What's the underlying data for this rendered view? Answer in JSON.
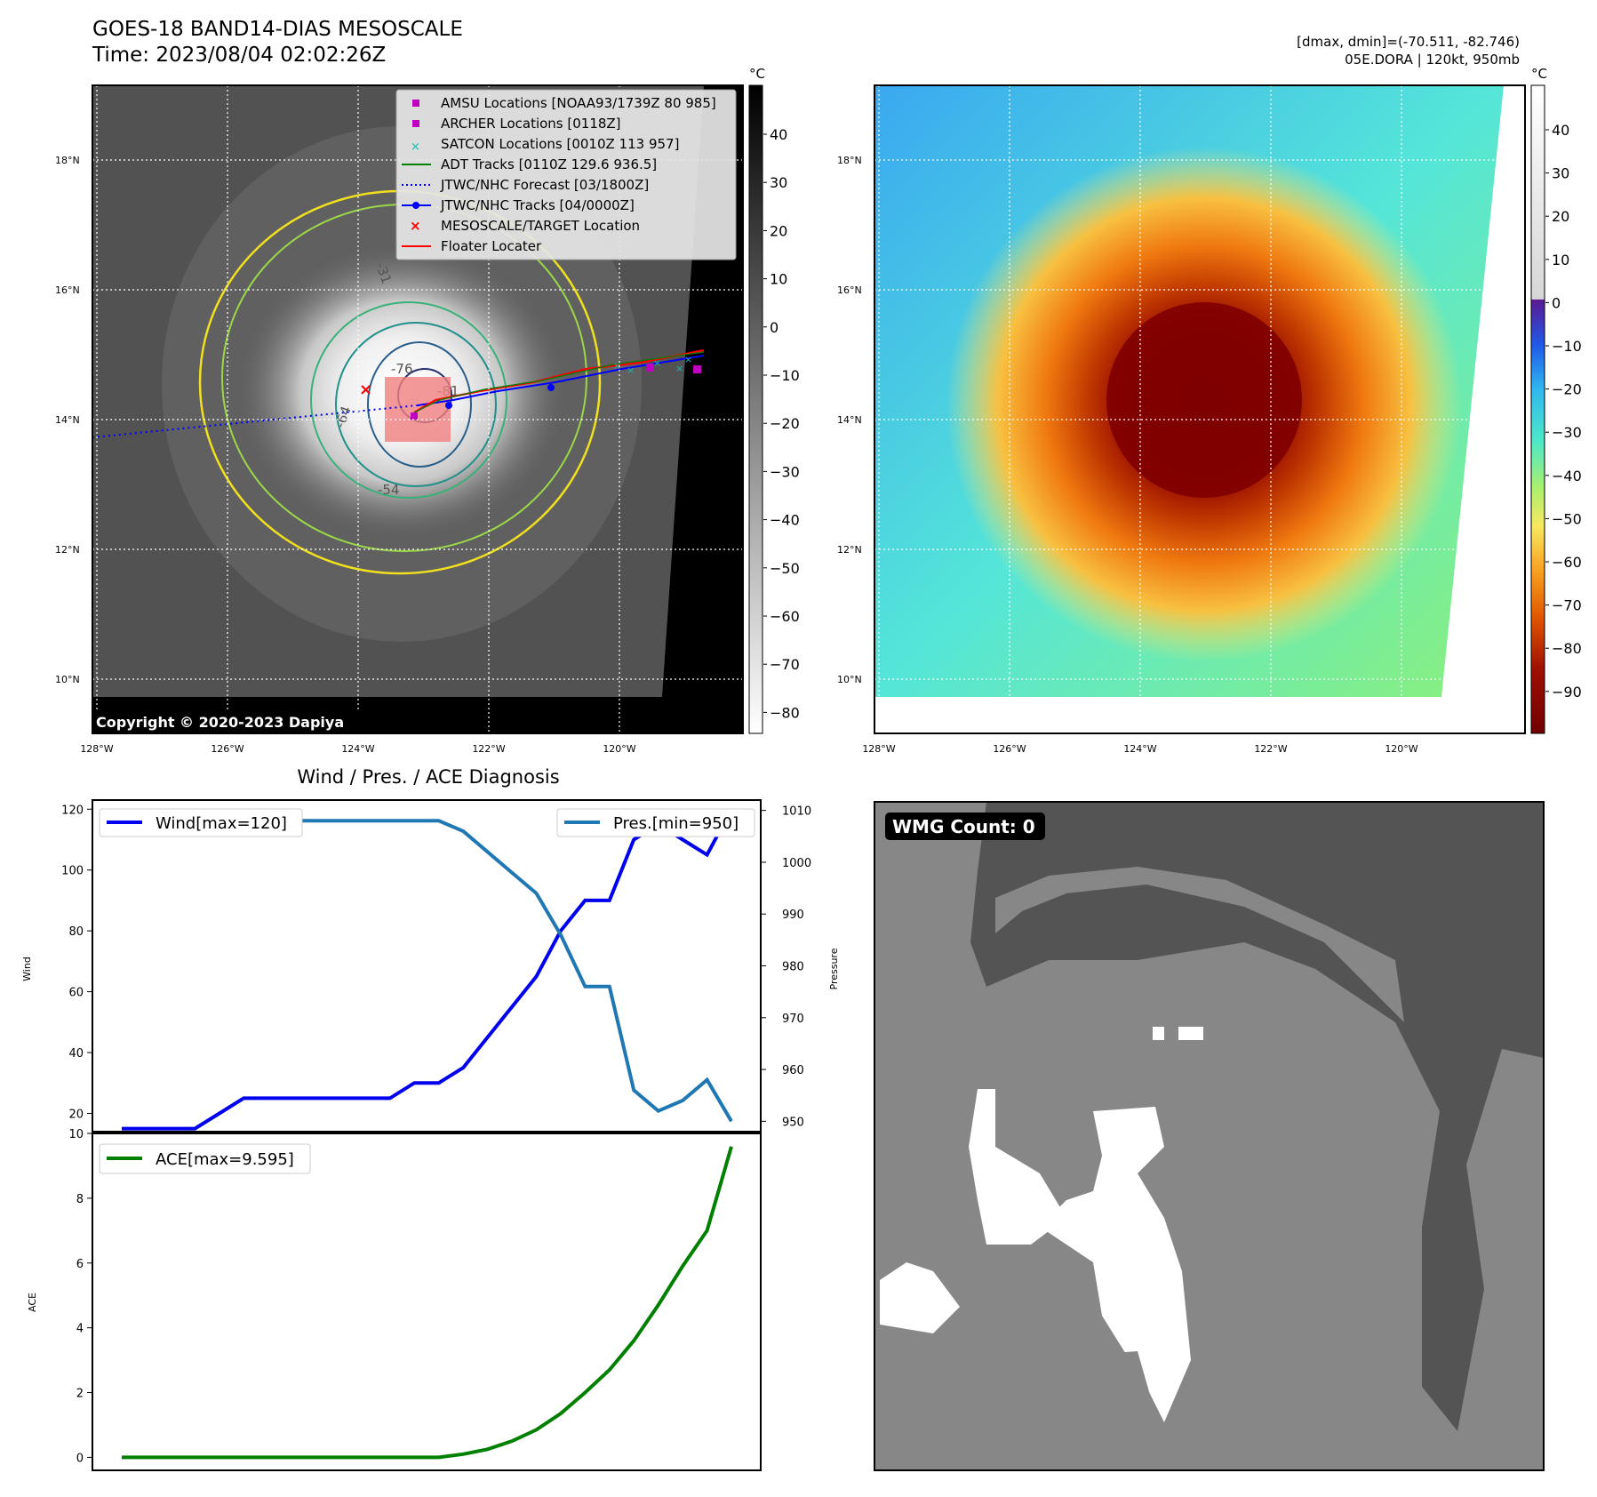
{
  "header": {
    "title": "GOES-18 BAND14-DIAS MESOSCALE",
    "time": "Time: 2023/08/04 02:02:26Z",
    "dmax_dmin": "[dmax, dmin]=(-70.511, -82.746)",
    "storm": "05E.DORA | 120kt, 950mb"
  },
  "ir_panel": {
    "copyright": "Copyright © 2020-2023 Dapiya",
    "unit": "°C",
    "colorbar_ticks": [
      "40",
      "30",
      "20",
      "10",
      "0",
      "−10",
      "−20",
      "−30",
      "−40",
      "−50",
      "−60",
      "−70",
      "−80"
    ],
    "lat_ticks": [
      "18°N",
      "16°N",
      "14°N",
      "12°N",
      "10°N"
    ],
    "lon_ticks": [
      "128°W",
      "126°W",
      "124°W",
      "122°W",
      "120°W"
    ],
    "contour_labels": [
      "-76",
      "-81",
      "-64",
      "-54",
      "-31"
    ],
    "legend": [
      {
        "label": "AMSU Locations [NOAA93/1739Z 80 985]",
        "color": "#c000c0",
        "marker": "square"
      },
      {
        "label": "ARCHER Locations [0118Z]",
        "color": "#c000c0",
        "marker": "square"
      },
      {
        "label": "SATCON Locations [0010Z 113 957]",
        "color": "#17b8b0",
        "marker": "x"
      },
      {
        "label": "ADT Tracks [0110Z 129.6 936.5]",
        "color": "#008000",
        "marker": "line"
      },
      {
        "label": "JTWC/NHC Forecast [03/1800Z]",
        "color": "#0000ff",
        "marker": "dotted"
      },
      {
        "label": "JTWC/NHC Tracks [04/0000Z]",
        "color": "#0000ff",
        "marker": "line-dot"
      },
      {
        "label": "MESOSCALE/TARGET Location",
        "color": "#ff0000",
        "marker": "x"
      },
      {
        "label": "Floater Locater",
        "color": "#ff0000",
        "marker": "line"
      }
    ]
  },
  "color_panel": {
    "unit": "°C",
    "colorbar_ticks": [
      "40",
      "30",
      "20",
      "10",
      "0",
      "−10",
      "−20",
      "−30",
      "−40",
      "−50",
      "−60",
      "−70",
      "−80",
      "−90"
    ],
    "lat_ticks": [
      "18°N",
      "16°N",
      "14°N",
      "12°N",
      "10°N"
    ],
    "lon_ticks": [
      "128°W",
      "126°W",
      "124°W",
      "122°W",
      "120°W"
    ]
  },
  "wmg_panel": {
    "label": "WMG Count: 0"
  },
  "chart_data": [
    {
      "type": "line",
      "title": "Wind / Pres. / ACE Diagnosis",
      "ylabel": "Wind",
      "ylabel_right": "Pressure",
      "ylim": [
        14,
        123
      ],
      "ylim_right": [
        948,
        1012
      ],
      "yticks": [
        20,
        40,
        60,
        80,
        100,
        120
      ],
      "yticks_right": [
        950,
        960,
        970,
        980,
        990,
        1000,
        1010
      ],
      "x": [
        0,
        1,
        2,
        3,
        4,
        5,
        6,
        7,
        8,
        9,
        10,
        11,
        12,
        13,
        14,
        15,
        16,
        17,
        18,
        19,
        20,
        21,
        22,
        23,
        24,
        25
      ],
      "series": [
        {
          "name": "Wind[max=120]",
          "axis": "left",
          "color": "#0000ee",
          "values": [
            15,
            15,
            15,
            15,
            20,
            25,
            25,
            25,
            25,
            25,
            25,
            25,
            30,
            30,
            35,
            45,
            55,
            65,
            80,
            90,
            90,
            110,
            115,
            110,
            105,
            120
          ]
        },
        {
          "name": "Pres.[min=950]",
          "axis": "right",
          "color": "#1f77b4",
          "values": [
            1010,
            1010,
            1010,
            1010,
            1009,
            1009,
            1008,
            1008,
            1008,
            1008,
            1008,
            1008,
            1008,
            1008,
            1006,
            1002,
            998,
            994,
            986,
            976,
            976,
            956,
            952,
            954,
            958,
            950
          ]
        }
      ]
    },
    {
      "type": "line",
      "ylabel": "ACE",
      "ylim": [
        -0.4,
        10
      ],
      "yticks": [
        0,
        2,
        4,
        6,
        8,
        10
      ],
      "x": [
        0,
        1,
        2,
        3,
        4,
        5,
        6,
        7,
        8,
        9,
        10,
        11,
        12,
        13,
        14,
        15,
        16,
        17,
        18,
        19,
        20,
        21,
        22,
        23,
        24,
        25
      ],
      "series": [
        {
          "name": "ACE[max=9.595]",
          "color": "#008000",
          "values": [
            0,
            0,
            0,
            0,
            0,
            0,
            0,
            0,
            0,
            0,
            0,
            0,
            0,
            0,
            0.1,
            0.25,
            0.5,
            0.85,
            1.35,
            2.0,
            2.7,
            3.6,
            4.7,
            5.9,
            7.0,
            9.595
          ]
        }
      ]
    }
  ]
}
